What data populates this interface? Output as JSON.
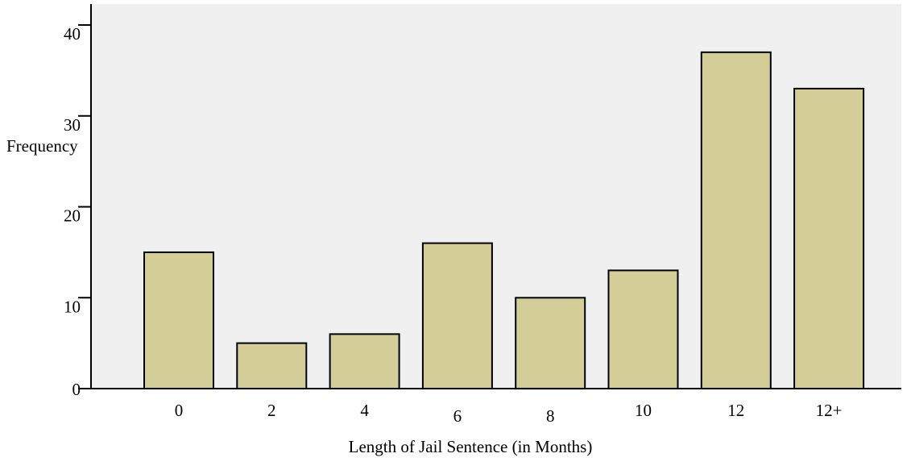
{
  "chart_data": {
    "type": "bar",
    "categories": [
      "0",
      "2",
      "4",
      "6",
      "8",
      "10",
      "12",
      "12+"
    ],
    "values": [
      15,
      5,
      6,
      16,
      10,
      13,
      37,
      33
    ],
    "xlabel": "Length of Jail Sentence (in Months)",
    "ylabel": "Frequency",
    "ylim": [
      0,
      40
    ],
    "yticks": [
      0,
      10,
      20,
      30,
      40
    ],
    "grid": false,
    "legend": "none",
    "colors": {
      "bar_fill": "#D3CE98",
      "plot_background": "#F0F0F0",
      "axis": "#000000"
    }
  }
}
